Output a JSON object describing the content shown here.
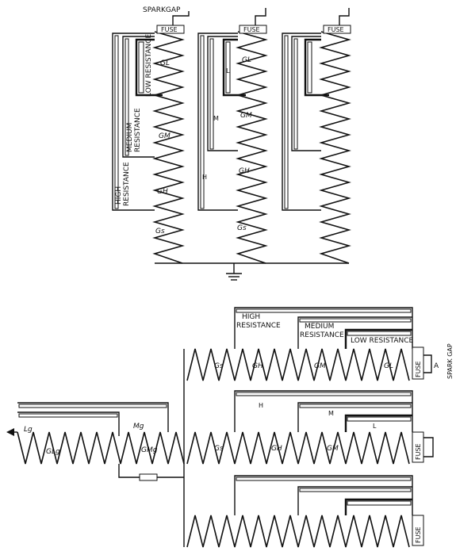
{
  "top_figure": {
    "spark_gap": "SPARKGAP",
    "fuse_labels": [
      "FUSE",
      "FUSE",
      "FUSE"
    ],
    "resistances": {
      "low": "LOW RESISTANCE",
      "medium_1": "MEDIUM",
      "medium_2": "RESISTANCE",
      "high_1": "HIGH",
      "high_2": "RESISTANCE"
    },
    "gap_labels": {
      "gl_a": "GL",
      "gm_a": "GM",
      "gh_a": "GH",
      "gs_a": "Gs",
      "gl_b": "GL",
      "gm_b": "GM",
      "gh_b": "GH",
      "gs_b": "Gs",
      "l": "L",
      "m": "M",
      "h": "H"
    }
  },
  "bottom_figure": {
    "resistances": {
      "high_1": "HIGH",
      "high_2": "RESISTANCE",
      "medium_1": "MEDIUM",
      "medium_2": "RESISTANCE",
      "low": "LOW RESISTANCE"
    },
    "spark_gap": "SPARK GAP",
    "spark_gap_a": "A",
    "fuse_labels": [
      "FUSE",
      "FUSE",
      "FUSE"
    ],
    "gap_labels": {
      "gs_1": "Gs",
      "gh_1": "GH",
      "gm_1": "GM",
      "gl_1": "GL",
      "gs_2": "Gs",
      "gh_2": "GH",
      "gm_2": "GM",
      "h": "H",
      "m": "M",
      "l": "L",
      "lg": "Lg",
      "glg": "GLg",
      "mg": "Mg",
      "gmg": "GMg"
    }
  }
}
